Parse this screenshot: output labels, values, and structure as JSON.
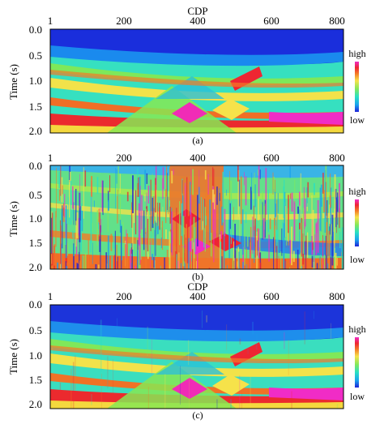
{
  "figure": {
    "panel_count": 3
  },
  "chart_data": [
    {
      "type": "heatmap",
      "panel_label": "(a)",
      "xlabel": "CDP",
      "ylabel": "Time (s)",
      "x_ticks": [
        1,
        200,
        400,
        600,
        800
      ],
      "y_ticks": [
        0.0,
        0.5,
        1.0,
        1.5,
        2.0
      ],
      "xlim": [
        1,
        800
      ],
      "ylim": [
        0.0,
        2.0
      ],
      "colorbar": {
        "high_label": "high",
        "low_label": "low"
      },
      "noise": "none"
    },
    {
      "type": "heatmap",
      "panel_label": "(b)",
      "xlabel": "",
      "ylabel": "Time (s)",
      "x_ticks": [
        1,
        200,
        400,
        600,
        800
      ],
      "y_ticks": [
        0.0,
        0.5,
        1.0,
        1.5,
        2.0
      ],
      "xlim": [
        1,
        800
      ],
      "ylim": [
        0.0,
        2.0
      ],
      "colorbar": {
        "high_label": "high",
        "low_label": "low"
      },
      "noise": "heavy"
    },
    {
      "type": "heatmap",
      "panel_label": "(c)",
      "xlabel": "CDP",
      "ylabel": "Time (s)",
      "x_ticks": [
        1,
        200,
        400,
        600,
        800
      ],
      "y_ticks": [
        0.0,
        0.5,
        1.0,
        1.5,
        2.0
      ],
      "xlim": [
        1,
        800
      ],
      "ylim": [
        0.0,
        2.0
      ],
      "colorbar": {
        "high_label": "high",
        "low_label": "low"
      },
      "noise": "light"
    }
  ],
  "colormap": [
    "#1e22d8",
    "#1aa2ee",
    "#28e0c4",
    "#84e85a",
    "#f6e24a",
    "#f47a26",
    "#ee2632",
    "#f02cc6"
  ]
}
